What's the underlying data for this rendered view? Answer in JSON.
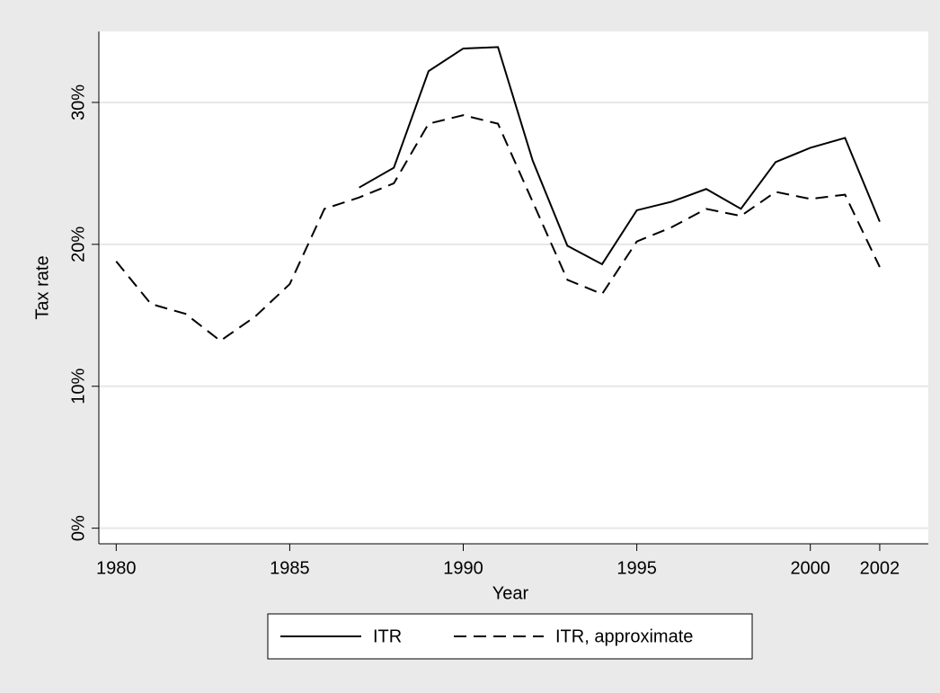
{
  "chart_data": {
    "type": "line",
    "x_label": "Year",
    "y_label": "Tax rate",
    "x": [
      1980,
      1981,
      1982,
      1983,
      1984,
      1985,
      1986,
      1987,
      1988,
      1989,
      1990,
      1991,
      1992,
      1993,
      1994,
      1995,
      1996,
      1997,
      1998,
      1999,
      2000,
      2001,
      2002
    ],
    "series": [
      {
        "name": "ITR",
        "color": "#000000",
        "linestyle": "solid",
        "values": [
          null,
          null,
          null,
          null,
          null,
          null,
          null,
          24.0,
          25.4,
          32.2,
          33.8,
          33.9,
          25.9,
          19.9,
          18.6,
          22.4,
          23.0,
          23.9,
          22.5,
          25.8,
          26.8,
          27.5,
          21.6
        ]
      },
      {
        "name": "ITR, approximate",
        "color": "#000000",
        "linestyle": "dashed",
        "values": [
          18.8,
          15.8,
          15.1,
          13.2,
          14.9,
          17.2,
          22.5,
          23.3,
          24.3,
          28.5,
          29.1,
          28.5,
          23.0,
          17.5,
          16.5,
          20.2,
          21.2,
          22.5,
          22.0,
          23.7,
          23.2,
          23.5,
          18.4
        ]
      }
    ],
    "xlim": [
      1979.5,
      2003.4
    ],
    "xticks": [
      1980,
      1985,
      1990,
      1995,
      2000,
      2002
    ],
    "ylim": [
      -1.1,
      35
    ],
    "yticks": [
      {
        "value": 0,
        "label": "0%"
      },
      {
        "value": 10,
        "label": "10%"
      },
      {
        "value": 20,
        "label": "20%"
      },
      {
        "value": 30,
        "label": "30%"
      }
    ],
    "grid": true,
    "legend": "bottom"
  }
}
